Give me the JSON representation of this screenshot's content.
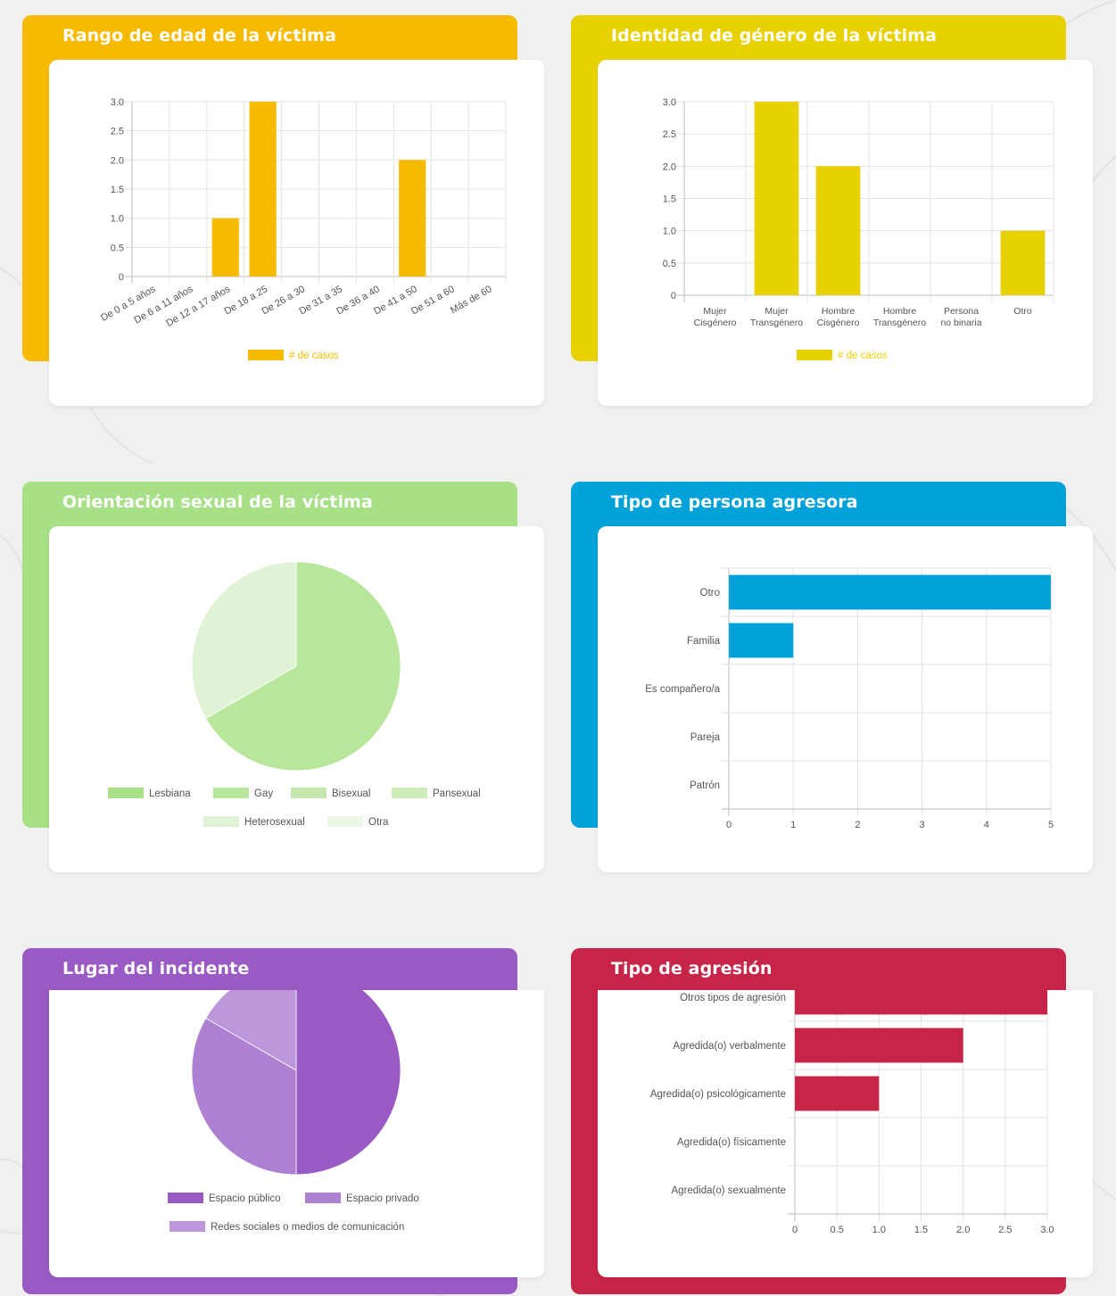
{
  "colors": {
    "yellow_orange": "#f6bb00",
    "yellow": "#e8d100",
    "green": "#a8e088",
    "blue": "#00a2d9",
    "purple": "#9a5ac4",
    "red": "#c72547"
  },
  "cards": {
    "edad": {
      "title": "Rango de edad de la víctima"
    },
    "genero": {
      "title": "Identidad de género de la víctima"
    },
    "orientacion": {
      "title": "Orientación sexual de la víctima"
    },
    "agresora": {
      "title": "Tipo de persona agresora"
    },
    "lugar": {
      "title": "Lugar del incidente"
    },
    "agresion": {
      "title": "Tipo de agresión"
    }
  },
  "chart_data": [
    {
      "id": "edad",
      "type": "bar",
      "categories": [
        "De 0 a 5 años",
        "De 6 a 11 años",
        "De 12 a 17 años",
        "De 18 a 25",
        "De 26 a 30",
        "De 31 a 35",
        "De 36 a 40",
        "De 41 a 50",
        "De 51 a 60",
        "Más de 60"
      ],
      "series": [
        {
          "name": "# de casos",
          "values": [
            0,
            0,
            1,
            3,
            0,
            0,
            0,
            2,
            0,
            0
          ],
          "color": "#f6bb00"
        }
      ],
      "ylim": [
        0,
        3
      ],
      "yticks": [
        "0",
        "0.5",
        "1.0",
        "1.5",
        "2.0",
        "2.5",
        "3.0"
      ],
      "grid": true,
      "legend": "bottom"
    },
    {
      "id": "genero",
      "type": "bar",
      "categories": [
        [
          "Mujer",
          "Cisgénero"
        ],
        [
          "Mujer",
          "Transgénero"
        ],
        [
          "Hombre",
          "Cisgénero"
        ],
        [
          "Hombre",
          "Transgénero"
        ],
        [
          "Persona",
          "no binaria"
        ],
        [
          "Otro"
        ]
      ],
      "series": [
        {
          "name": "# de casos",
          "values": [
            0,
            3,
            2,
            0,
            0,
            1
          ],
          "color": "#e8d100"
        }
      ],
      "ylim": [
        0,
        3
      ],
      "yticks": [
        "0",
        "0.5",
        "1.0",
        "1.5",
        "2.0",
        "2.5",
        "3.0"
      ],
      "grid": true,
      "legend": "bottom"
    },
    {
      "id": "orientacion",
      "type": "pie",
      "labels": [
        "Lesbiana",
        "Gay",
        "Bisexual",
        "Pansexual",
        "Heterosexual",
        "Otra"
      ],
      "values": [
        0,
        2,
        0,
        0,
        1,
        0
      ],
      "colors": [
        "#a8e088",
        "#b8e69a",
        "#c2e9ab",
        "#cdedbb",
        "#e1f3d6",
        "#ecf8e6"
      ],
      "legend": "bottom"
    },
    {
      "id": "agresora",
      "type": "bar",
      "orientation": "horizontal",
      "categories": [
        "Otro",
        "Familia",
        "Es compañero/a",
        "Pareja",
        "Patrón"
      ],
      "values": [
        5,
        1,
        0,
        0,
        0
      ],
      "xlim": [
        0,
        5
      ],
      "xticks": [
        "0",
        "1",
        "2",
        "3",
        "4",
        "5"
      ],
      "color": "#00a2d9",
      "grid": true
    },
    {
      "id": "lugar",
      "type": "pie",
      "labels": [
        "Espacio público",
        "Espacio privado",
        "Redes sociales o medios de comunicación"
      ],
      "values": [
        3,
        2,
        1
      ],
      "colors": [
        "#9a5ac4",
        "#ad80d2",
        "#bd97dc"
      ],
      "legend": "bottom"
    },
    {
      "id": "agresion",
      "type": "bar",
      "orientation": "horizontal",
      "categories": [
        "Otros tipos de agresión",
        "Agredida(o) verbalmente",
        "Agredida(o) psicológicamente",
        "Agredida(o) físicamente",
        "Agredida(o) sexualmente"
      ],
      "values": [
        3,
        2,
        1,
        0,
        0
      ],
      "xlim": [
        0,
        3
      ],
      "xticks": [
        "0",
        "0.5",
        "1.0",
        "1.5",
        "2.0",
        "2.5",
        "3.0"
      ],
      "color": "#c72547",
      "grid": true
    }
  ]
}
